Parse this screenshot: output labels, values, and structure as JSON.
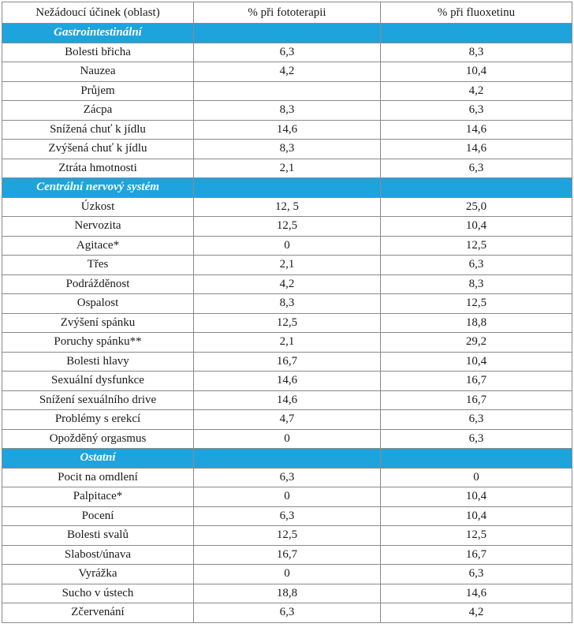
{
  "table": {
    "headers": [
      "Nežádoucí účinek (oblast)",
      "% při fototerapii",
      "% při fluoxetinu"
    ],
    "sections": [
      {
        "name": "Gastrointestinální",
        "rows": [
          [
            "Bolesti břicha",
            "6,3",
            "8,3"
          ],
          [
            "Nauzea",
            "4,2",
            "10,4"
          ],
          [
            "Průjem",
            "",
            "4,2"
          ],
          [
            "Zácpa",
            "8,3",
            "6,3"
          ],
          [
            "Snížená chuť k jídlu",
            "14,6",
            "14,6"
          ],
          [
            "Zvýšená chuť k jídlu",
            "8,3",
            "14,6"
          ],
          [
            "Ztráta hmotnosti",
            "2,1",
            "6,3"
          ]
        ]
      },
      {
        "name": "Centrální nervový systém",
        "rows": [
          [
            "Úzkost",
            "12, 5",
            "25,0"
          ],
          [
            "Nervozita",
            "12,5",
            "10,4"
          ],
          [
            "Agitace*",
            "0",
            "12,5"
          ],
          [
            "Třes",
            "2,1",
            "6,3"
          ],
          [
            "Podrážděnost",
            "4,2",
            "8,3"
          ],
          [
            "Ospalost",
            "8,3",
            "12,5"
          ],
          [
            "Zvýšení spánku",
            "12,5",
            "18,8"
          ],
          [
            "Poruchy spánku**",
            "2,1",
            "29,2"
          ],
          [
            "Bolesti hlavy",
            "16,7",
            "10,4"
          ],
          [
            "Sexuální dysfunkce",
            "14,6",
            "16,7"
          ],
          [
            "Snížení sexuálního drive",
            "14,6",
            "16,7"
          ],
          [
            "Problémy s erekcí",
            "4,7",
            "6,3"
          ],
          [
            "Opožděný orgasmus",
            "0",
            "6,3"
          ]
        ]
      },
      {
        "name": "Ostatní",
        "rows": [
          [
            "Pocit na omdlení",
            "6,3",
            "0"
          ],
          [
            "Palpitace*",
            "0",
            "10,4"
          ],
          [
            "Pocení",
            "6,3",
            "10,4"
          ],
          [
            "Bolesti svalů",
            "12,5",
            "12,5"
          ],
          [
            "Slabost/únava",
            "16,7",
            "16,7"
          ],
          [
            "Vyrážka",
            "0",
            "6,3"
          ],
          [
            "Sucho v ústech",
            "18,8",
            "14,6"
          ],
          [
            "Zčervenání",
            "6,3",
            "4,2"
          ]
        ]
      }
    ]
  }
}
